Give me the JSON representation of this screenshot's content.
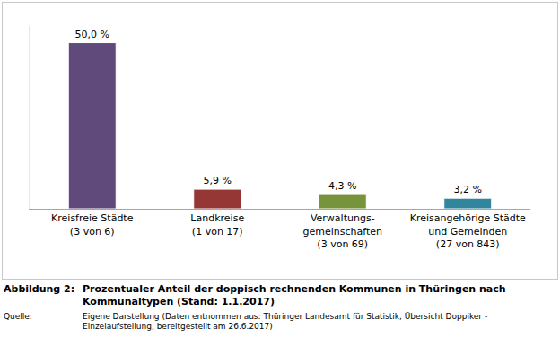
{
  "chart_data": {
    "type": "bar",
    "categories": [
      "Kreisfreie Städte\n(3 von 6)",
      "Landkreise\n(1 von 17)",
      "Verwaltungs-\ngemeinschaften\n(3 von 69)",
      "Kreisangehörige Städte\nund Gemeinden\n(27 von 843)"
    ],
    "values": [
      50.0,
      5.9,
      4.3,
      3.2
    ],
    "value_labels": [
      "50,0 %",
      "5,9 %",
      "4,3 %",
      "3,2 %"
    ],
    "colors": [
      "#604a7b",
      "#953735",
      "#77933c",
      "#31859c"
    ],
    "ylim": [
      0,
      55
    ],
    "yticks": [],
    "grid": false,
    "data_labels": true,
    "tick_labels": "x"
  },
  "caption": {
    "label": "Abbildung 2:",
    "text": "Prozentualer Anteil der doppisch rechnenden Kommunen in Thüringen nach Kommunaltypen (Stand: 1.1.2017)"
  },
  "source": {
    "label": "Quelle:",
    "text": "Eigene Darstellung (Daten entnommen aus: Thüringer Landesamt für Statistik, Übersicht Doppiker - Einzelaufstellung, bereitgestellt am 26.6.2017)"
  }
}
